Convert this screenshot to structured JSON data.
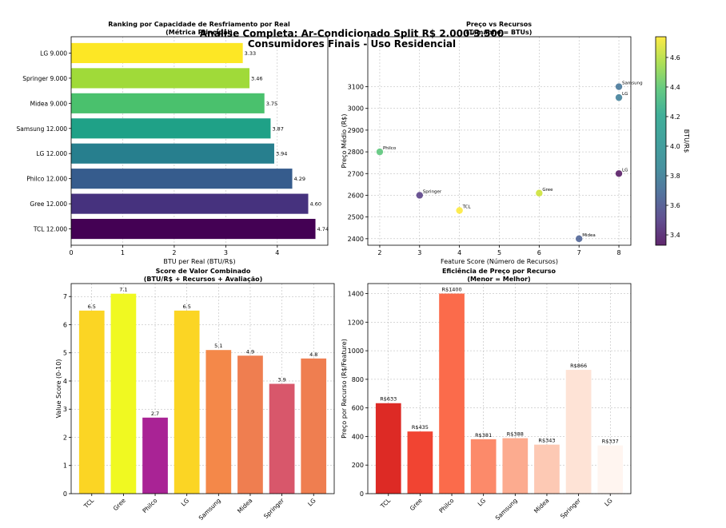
{
  "suptitle_line1": "Análise Completa: Ar-Condicionado Split R$ 2.000-3.500",
  "suptitle_line2": "Consumidores Finais - Uso Residencial",
  "chart_data": [
    {
      "type": "bar",
      "orientation": "horizontal",
      "title": "Ranking por Capacidade de Resfriamento por Real",
      "subtitle": "(Métrica Principal)",
      "xlabel": "BTU per Real (BTU/R$)",
      "ylabel": "",
      "xlim": [
        0,
        4.98
      ],
      "xticks": [
        0,
        1,
        2,
        3,
        4
      ],
      "categories": [
        "TCL 12.000",
        "Gree 12.000",
        "Philco 12.000",
        "LG 12.000",
        "Samsung 12.000",
        "Midea 9.000",
        "Springer 9.000",
        "LG 9.000"
      ],
      "values": [
        4.74,
        4.6,
        4.29,
        3.94,
        3.87,
        3.75,
        3.46,
        3.33
      ],
      "value_labels": [
        "4.74",
        "4.60",
        "4.29",
        "3.94",
        "3.87",
        "3.75",
        "3.46",
        "3.33"
      ],
      "colormap": "viridis",
      "colors": [
        "#440154",
        "#46327e",
        "#365c8d",
        "#277f8e",
        "#1fa187",
        "#4ac16d",
        "#a0da39",
        "#fde725"
      ]
    },
    {
      "type": "scatter",
      "title": "Preço vs Recursos",
      "subtitle": "(Tamanho = BTUs)",
      "xlabel": "Feature Score (Número de Recursos)",
      "ylabel": "Preço Médio (R$)",
      "xlim": [
        1.7,
        8.3
      ],
      "ylim": [
        2370,
        3330
      ],
      "xticks": [
        2,
        3,
        4,
        5,
        6,
        7,
        8
      ],
      "yticks": [
        2400,
        2500,
        2600,
        2700,
        2800,
        2900,
        3000,
        3100
      ],
      "colorbar": {
        "label": "BTU/R$",
        "min": 3.33,
        "max": 4.74,
        "ticks": [
          "3.4",
          "3.6",
          "3.8",
          "4.0",
          "4.2",
          "4.4",
          "4.6"
        ],
        "tick_values": [
          3.4,
          3.6,
          3.8,
          4.0,
          4.2,
          4.4,
          4.6
        ],
        "colormap": "viridis"
      },
      "points": [
        {
          "label": "Philco",
          "x": 2,
          "y": 2800,
          "c": 4.29,
          "color": "#4ac16d"
        },
        {
          "label": "Springer",
          "x": 3,
          "y": 2600,
          "c": 3.46,
          "color": "#472c7a"
        },
        {
          "label": "TCL",
          "x": 4,
          "y": 2530,
          "c": 4.74,
          "color": "#fde725"
        },
        {
          "label": "Gree",
          "x": 6,
          "y": 2610,
          "c": 4.6,
          "color": "#c8e020"
        },
        {
          "label": "Midea",
          "x": 7,
          "y": 2400,
          "c": 3.75,
          "color": "#3b528b"
        },
        {
          "label": "LG",
          "x": 8,
          "y": 2700,
          "c": 3.33,
          "color": "#440154"
        },
        {
          "label": "LG",
          "x": 8,
          "y": 3050,
          "c": 3.94,
          "color": "#2c728e"
        },
        {
          "label": "Samsung",
          "x": 8,
          "y": 3100,
          "c": 3.87,
          "color": "#31688e"
        }
      ]
    },
    {
      "type": "bar",
      "title": "Score de Valor Combinado",
      "subtitle": "(BTU/R$ + Recursos + Avaliação)",
      "xlabel": "",
      "ylabel": "Value Score (0-10)",
      "ylim": [
        0,
        7.46
      ],
      "yticks": [
        0,
        1,
        2,
        3,
        4,
        5,
        6,
        7
      ],
      "categories": [
        "TCL",
        "Gree",
        "Philco",
        "LG",
        "Samsung",
        "Midea",
        "Springer",
        "LG"
      ],
      "values": [
        6.5,
        7.1,
        2.7,
        6.5,
        5.1,
        4.9,
        3.9,
        4.8
      ],
      "value_labels": [
        "6.5",
        "7.1",
        "2.7",
        "6.5",
        "5.1",
        "4.9",
        "3.9",
        "4.8"
      ],
      "colormap": "plasma",
      "colors": [
        "#fbd524",
        "#f0f921",
        "#a92395",
        "#fbd524",
        "#f48849",
        "#ef7e50",
        "#d8576b",
        "#ef7e50"
      ]
    },
    {
      "type": "bar",
      "title": "Eficiência de Preço por Recurso",
      "subtitle": "(Menor = Melhor)",
      "xlabel": "",
      "ylabel": "Preço por Recurso (R$/Feature)",
      "ylim": [
        0,
        1470
      ],
      "yticks": [
        0,
        200,
        400,
        600,
        800,
        1000,
        1200,
        1400
      ],
      "categories": [
        "TCL",
        "Gree",
        "Philco",
        "LG",
        "Samsung",
        "Midea",
        "Springer",
        "LG"
      ],
      "values": [
        633,
        435,
        1400,
        381,
        388,
        343,
        866,
        337
      ],
      "value_labels": [
        "R$633",
        "R$435",
        "R$1400",
        "R$381",
        "R$388",
        "R$343",
        "R$866",
        "R$337"
      ],
      "colormap": "reds",
      "colors": [
        "#dd2a25",
        "#f14432",
        "#fb6b4b",
        "#fc8a6a",
        "#fcab8f",
        "#fdc9b4",
        "#fee3d6",
        "#fff5f0"
      ]
    }
  ]
}
